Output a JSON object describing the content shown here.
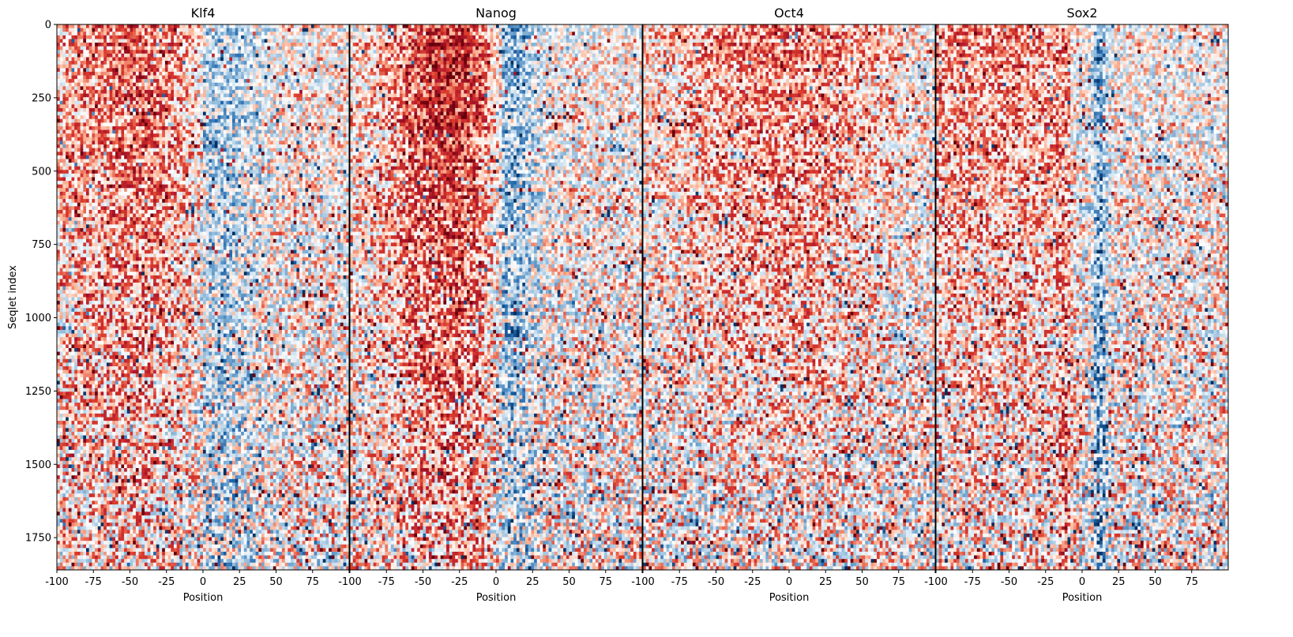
{
  "chart_data": {
    "type": "heatmap",
    "colormap": "diverging red (positive) / white (zero) / blue (negative)",
    "colors": {
      "positive": "#b2182b",
      "zero": "#ffffff",
      "negative": "#2166ac"
    },
    "ylabel": "Seqlet index",
    "ylim": [
      1860,
      0
    ],
    "yticks": [
      0,
      250,
      500,
      750,
      1000,
      1250,
      1500,
      1750
    ],
    "y_tick_labels": [
      "0",
      "250",
      "500",
      "750",
      "1000",
      "1250",
      "1500",
      "1750"
    ],
    "panels": [
      {
        "title": "Klf4",
        "xlabel": "Position",
        "xlim": [
          -100,
          100
        ],
        "xticks": [
          -100,
          -75,
          -50,
          -25,
          0,
          25,
          50,
          75,
          100
        ],
        "x_tick_labels": [
          "-100",
          "-75",
          "-50",
          "-25",
          "0",
          "25",
          "50",
          "75",
          ""
        ]
      },
      {
        "title": "Nanog",
        "xlabel": "Position",
        "xlim": [
          -100,
          100
        ],
        "xticks": [
          -100,
          -75,
          -50,
          -25,
          0,
          25,
          50,
          75,
          100
        ],
        "x_tick_labels": [
          "-100",
          "-75",
          "-50",
          "-25",
          "0",
          "25",
          "50",
          "75",
          ""
        ]
      },
      {
        "title": "Oct4",
        "xlabel": "Position",
        "xlim": [
          -100,
          100
        ],
        "xticks": [
          -100,
          -75,
          -50,
          -25,
          0,
          25,
          50,
          75,
          100
        ],
        "x_tick_labels": [
          "-100",
          "-75",
          "-50",
          "-25",
          "0",
          "25",
          "50",
          "75",
          ""
        ]
      },
      {
        "title": "Sox2",
        "xlabel": "Position",
        "xlim": [
          -100,
          100
        ],
        "xticks": [
          -100,
          -75,
          -50,
          -25,
          0,
          25,
          50,
          75
        ],
        "x_tick_labels": [
          "-100",
          "-75",
          "-50",
          "-25",
          "0",
          "25",
          "50",
          "75"
        ]
      }
    ]
  }
}
